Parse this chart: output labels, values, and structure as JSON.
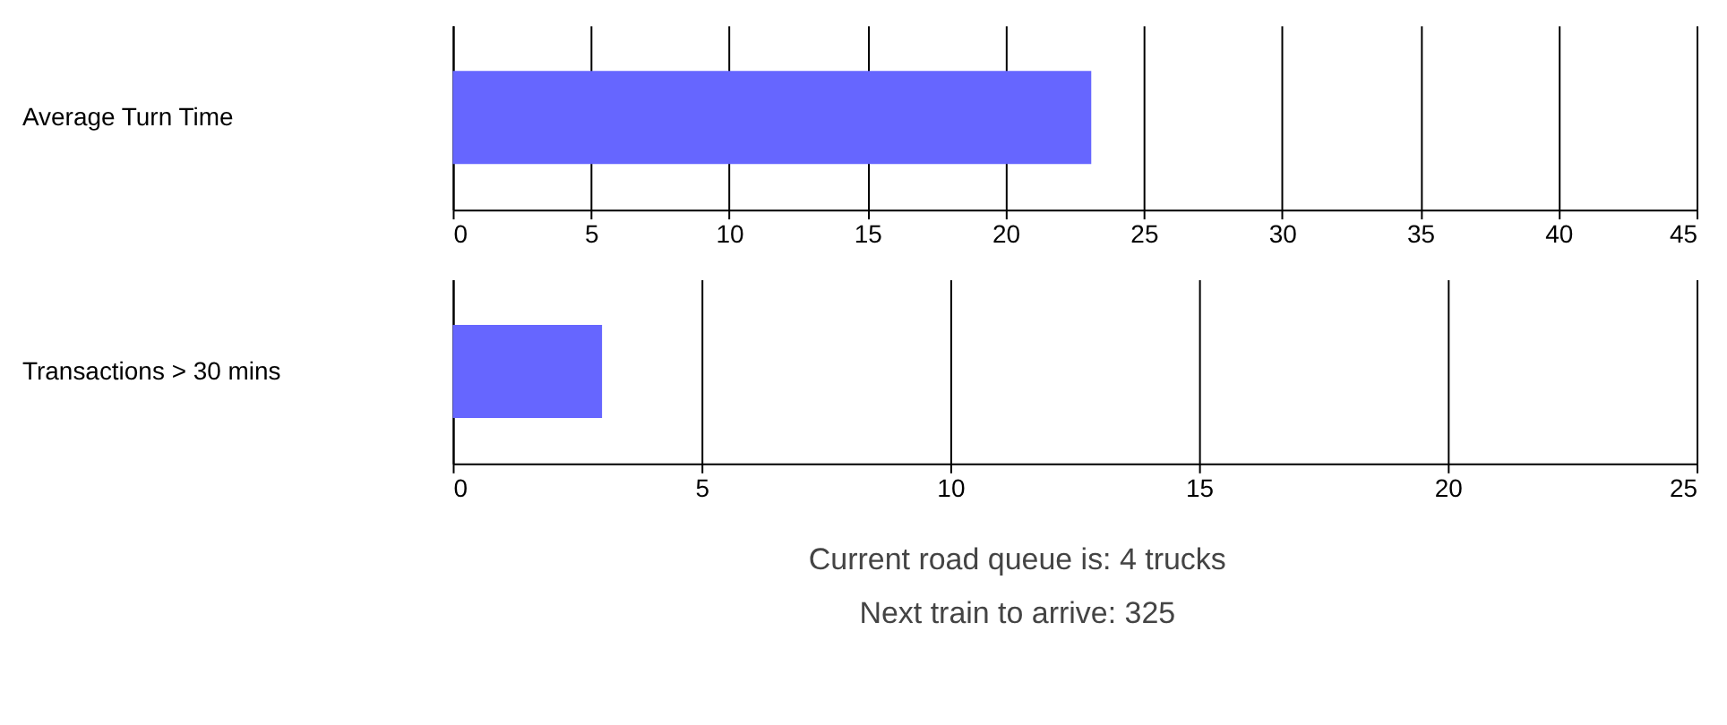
{
  "chart_data": [
    {
      "type": "bar",
      "orientation": "horizontal",
      "categories": [
        "Average Turn Time"
      ],
      "values": [
        23.1
      ],
      "color": "#6666ff",
      "xlim": [
        0,
        45
      ],
      "xticks": [
        0,
        5,
        10,
        15,
        20,
        25,
        30,
        35,
        40,
        45
      ],
      "grid": "x"
    },
    {
      "type": "bar",
      "orientation": "horizontal",
      "categories": [
        "Transactions > 30 mins"
      ],
      "values": [
        3
      ],
      "color": "#6666ff",
      "xlim": [
        0,
        25
      ],
      "xticks": [
        0,
        5,
        10,
        15,
        20,
        25
      ],
      "grid": "x",
      "annotations": [
        "Current road queue is: 4 trucks",
        "Next train to arrive: 325"
      ]
    }
  ]
}
